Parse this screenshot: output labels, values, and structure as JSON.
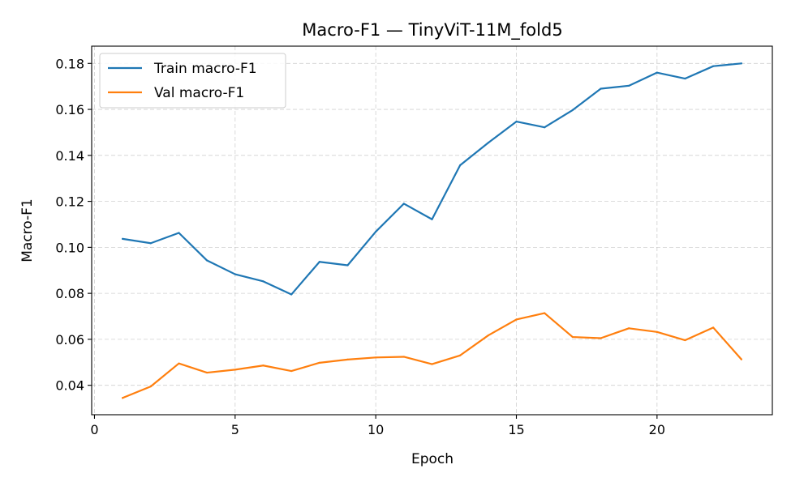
{
  "chart_data": {
    "type": "line",
    "title": "Macro-F1 — TinyViT-11M_fold5",
    "xlabel": "Epoch",
    "ylabel": "Macro-F1",
    "xlim": [
      -0.1,
      24.1
    ],
    "ylim": [
      0.0272,
      0.1875
    ],
    "xticks": [
      0,
      5,
      10,
      15,
      20
    ],
    "yticks": [
      0.04,
      0.06,
      0.08,
      0.1,
      0.12,
      0.14,
      0.16,
      0.18
    ],
    "ytick_labels": [
      "0.04",
      "0.06",
      "0.08",
      "0.10",
      "0.12",
      "0.14",
      "0.16",
      "0.18"
    ],
    "grid": true,
    "legend_position": "top-left",
    "x": [
      1,
      2,
      3,
      4,
      5,
      6,
      7,
      8,
      9,
      10,
      11,
      12,
      13,
      14,
      15,
      16,
      17,
      18,
      19,
      20,
      21,
      22,
      23
    ],
    "series": [
      {
        "name": "Train macro-F1",
        "color": "#1f77b4",
        "values": [
          0.1037,
          0.1018,
          0.1063,
          0.0943,
          0.0883,
          0.0852,
          0.0795,
          0.0937,
          0.0922,
          0.1068,
          0.119,
          0.1122,
          0.1357,
          0.1455,
          0.1547,
          0.1522,
          0.1597,
          0.169,
          0.1703,
          0.176,
          0.1734,
          0.1788,
          0.18
        ]
      },
      {
        "name": "Val macro-F1",
        "color": "#ff7f0e",
        "values": [
          0.0345,
          0.0395,
          0.0495,
          0.0455,
          0.0468,
          0.0486,
          0.0462,
          0.0498,
          0.0512,
          0.0521,
          0.0524,
          0.0492,
          0.053,
          0.0617,
          0.0686,
          0.0714,
          0.061,
          0.0605,
          0.0648,
          0.0632,
          0.0596,
          0.0651,
          0.0513
        ]
      }
    ]
  }
}
